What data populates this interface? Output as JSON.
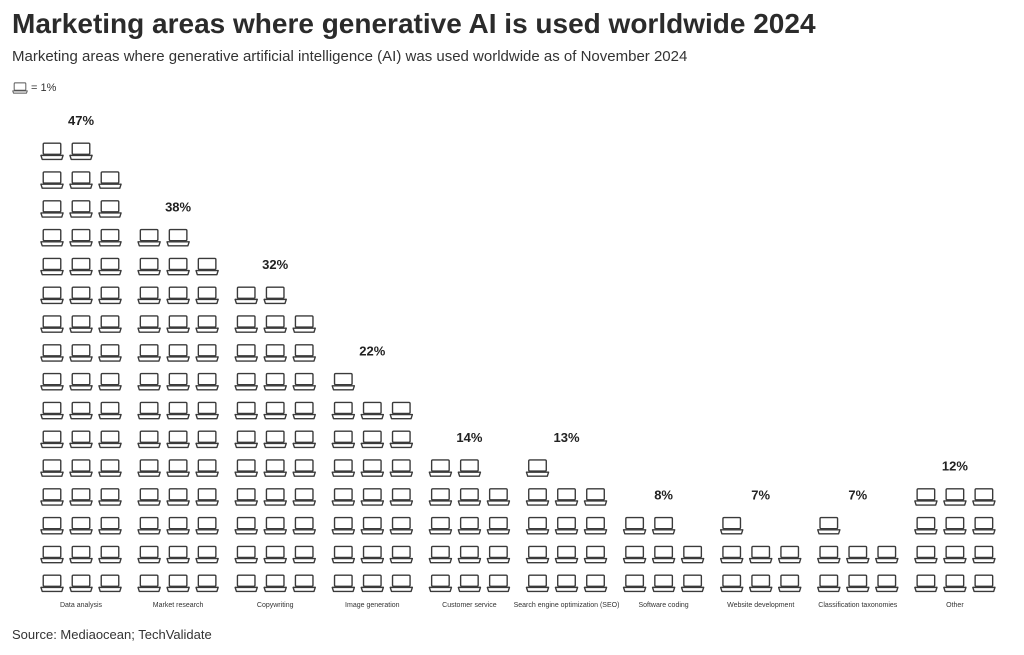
{
  "title": "Marketing areas where generative AI is used worldwide 2024",
  "subtitle": "Marketing areas where generative artificial intelligence (AI) was used worldwide as of November 2024",
  "legend": {
    "icon": "laptop-icon",
    "text": "= 1%"
  },
  "source": "Source: Mediaocean; TechValidate",
  "colors": {
    "icon_stroke": "#3a3a3a",
    "icon_fill": "#ffffff",
    "text": "#222222"
  },
  "chart_data": {
    "type": "bar",
    "style": "pictogram",
    "unit_per_icon": "1%",
    "categories": [
      "Data analysis",
      "Market research",
      "Copywriting",
      "Image generation",
      "Customer service",
      "Search engine optimization (SEO)",
      "Software coding",
      "Website development",
      "Classification taxonomies",
      "Other"
    ],
    "values": [
      47,
      38,
      32,
      22,
      14,
      13,
      8,
      7,
      7,
      12
    ],
    "value_labels": [
      "47%",
      "38%",
      "32%",
      "22%",
      "14%",
      "13%",
      "8%",
      "7%",
      "7%",
      "12%"
    ],
    "ylim": [
      0,
      47
    ],
    "grid": false,
    "legend_position": "top-left"
  }
}
